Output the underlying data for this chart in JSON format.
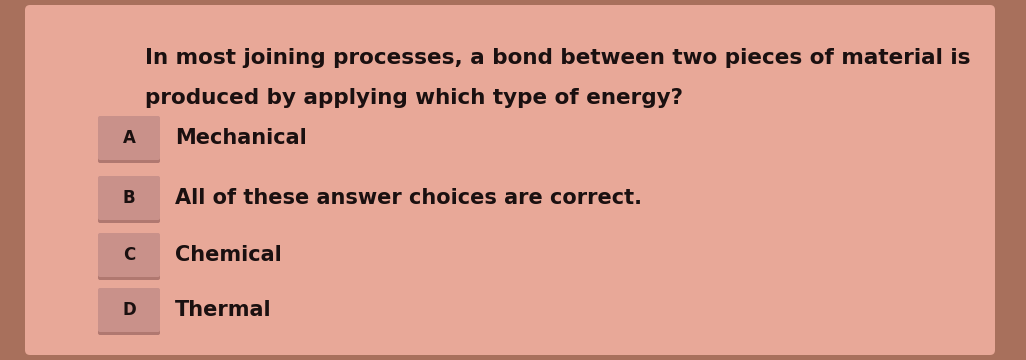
{
  "question_line1": "In most joining processes, a bond between two pieces of material is",
  "question_line2": "produced by applying which type of energy?",
  "options": [
    {
      "label": "A",
      "text": "Mechanical"
    },
    {
      "label": "B",
      "text": "All of these answer choices are correct."
    },
    {
      "label": "C",
      "text": "Chemical"
    },
    {
      "label": "D",
      "text": "Thermal"
    }
  ],
  "bg_outer": "#a8705c",
  "bg_card": "#e8a898",
  "btn_color": "#c9918a",
  "btn_shadow": "#b07870",
  "text_color": "#1a1010",
  "question_fontsize": 15.5,
  "option_fontsize": 15,
  "label_fontsize": 12
}
